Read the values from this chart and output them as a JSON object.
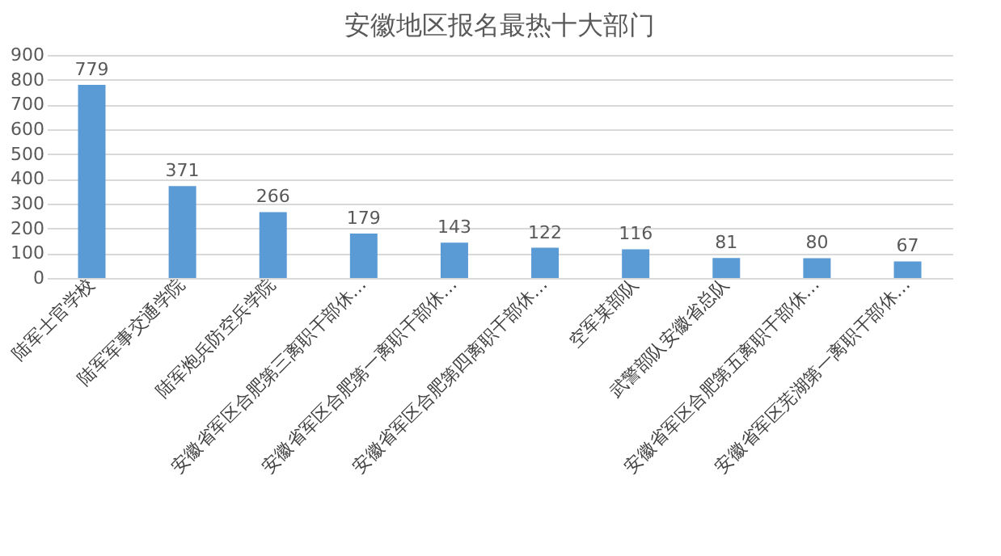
{
  "chart_data": {
    "type": "bar",
    "title": "安徽地区报名最热十大部门",
    "categories": [
      "陆军士官学校",
      "陆军军事交通学院",
      "陆军炮兵防空兵学院",
      "安徽省军区合肥第三离职干部休…",
      "安徽省军区合肥第一离职干部休…",
      "安徽省军区合肥第四离职干部休…",
      "空军某部队",
      "武警部队安徽省总队",
      "安徽省军区合肥第五离职干部休…",
      "安徽省军区芜湖第一离职干部休…"
    ],
    "values": [
      779,
      371,
      266,
      179,
      143,
      122,
      116,
      81,
      80,
      67
    ],
    "color": "#5b9bd5",
    "ylim": [
      0,
      900
    ],
    "yticks": [
      0,
      100,
      200,
      300,
      400,
      500,
      600,
      700,
      800,
      900
    ],
    "grid": "y",
    "data_labels": true
  }
}
